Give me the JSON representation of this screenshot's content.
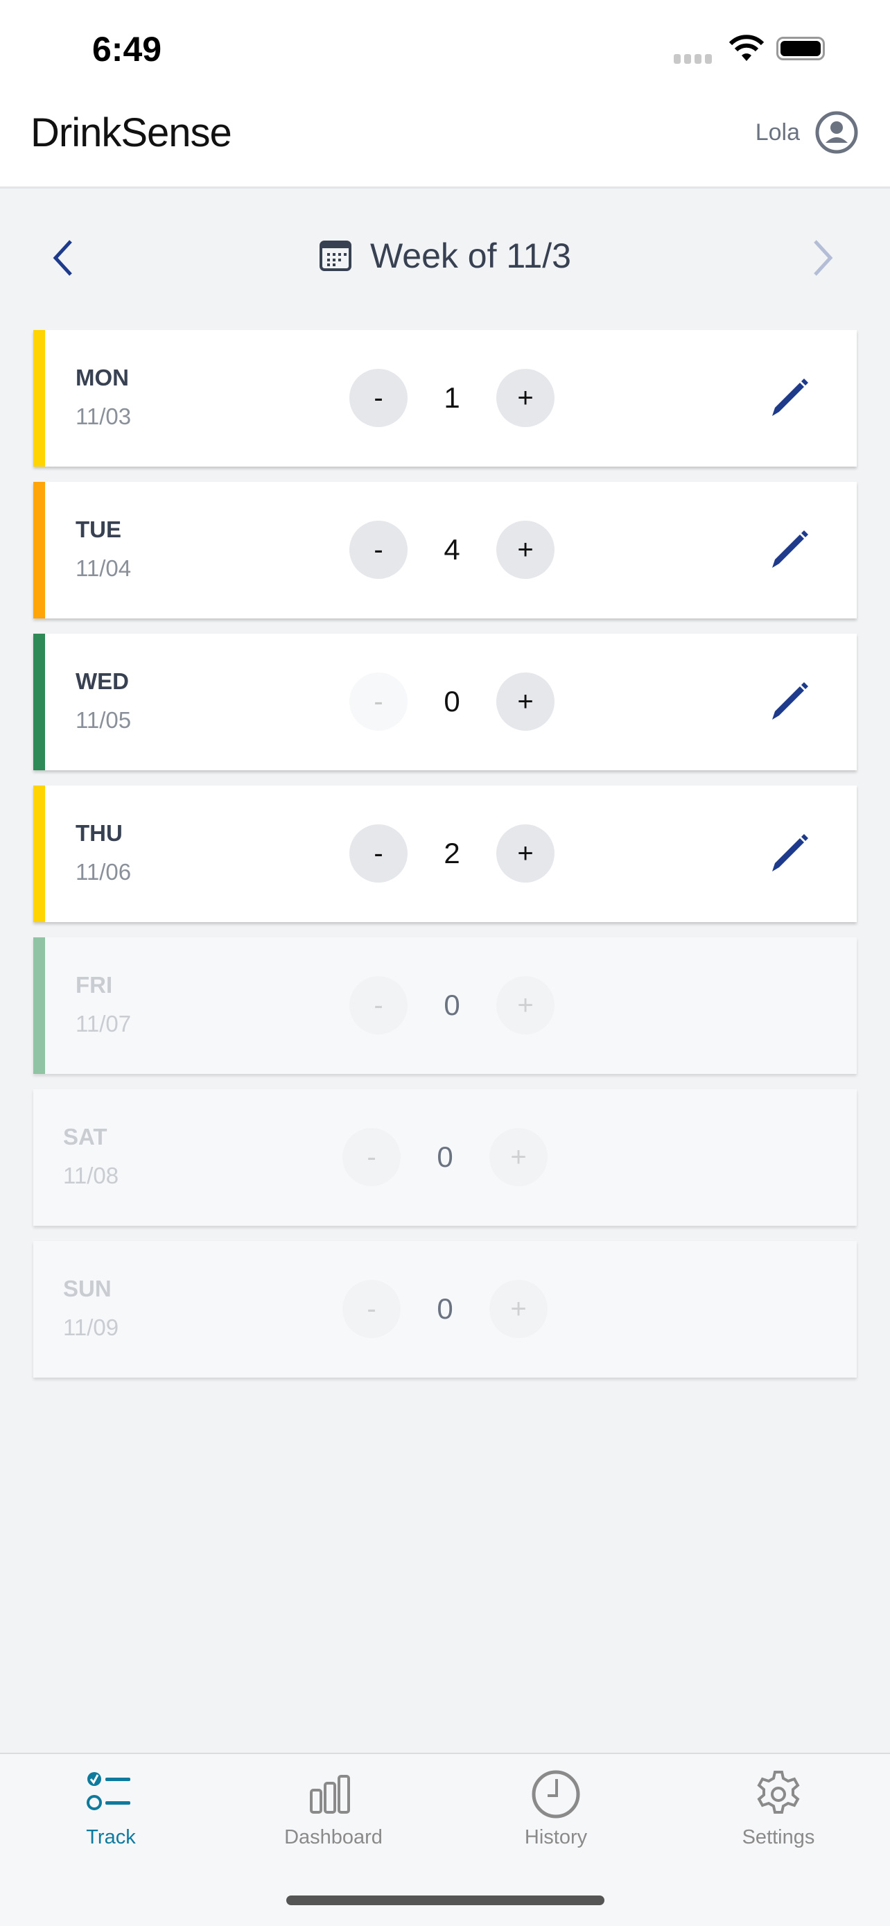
{
  "status_bar": {
    "time": "6:49"
  },
  "header": {
    "title": "DrinkSense",
    "user": "Lola"
  },
  "week": {
    "title": "Week of 11/3"
  },
  "days": [
    {
      "day": "MON",
      "date": "11/03",
      "count": "1",
      "color": "#FFD400",
      "minus": "-",
      "plus": "+"
    },
    {
      "day": "TUE",
      "date": "11/04",
      "count": "4",
      "color": "#FFA50A",
      "minus": "-",
      "plus": "+"
    },
    {
      "day": "WED",
      "date": "11/05",
      "count": "0",
      "color": "#2E8B57",
      "minus": "-",
      "plus": "+"
    },
    {
      "day": "THU",
      "date": "11/06",
      "count": "2",
      "color": "#FFD400",
      "minus": "-",
      "plus": "+"
    },
    {
      "day": "FRI",
      "date": "11/07",
      "count": "0",
      "color": "#8FC3A3",
      "minus": "-",
      "plus": "+"
    },
    {
      "day": "SAT",
      "date": "11/08",
      "count": "0",
      "minus": "-",
      "plus": "+"
    },
    {
      "day": "SUN",
      "date": "11/09",
      "count": "0",
      "minus": "-",
      "plus": "+"
    }
  ],
  "tabs": [
    {
      "label": "Track",
      "icon": "checklist-icon",
      "active": true
    },
    {
      "label": "Dashboard",
      "icon": "bar-chart-icon"
    },
    {
      "label": "History",
      "icon": "clock-icon"
    },
    {
      "label": "Settings",
      "icon": "gear-icon"
    }
  ],
  "colors": {
    "accent": "#0E7A9E",
    "nav": "#1E3A8A"
  }
}
